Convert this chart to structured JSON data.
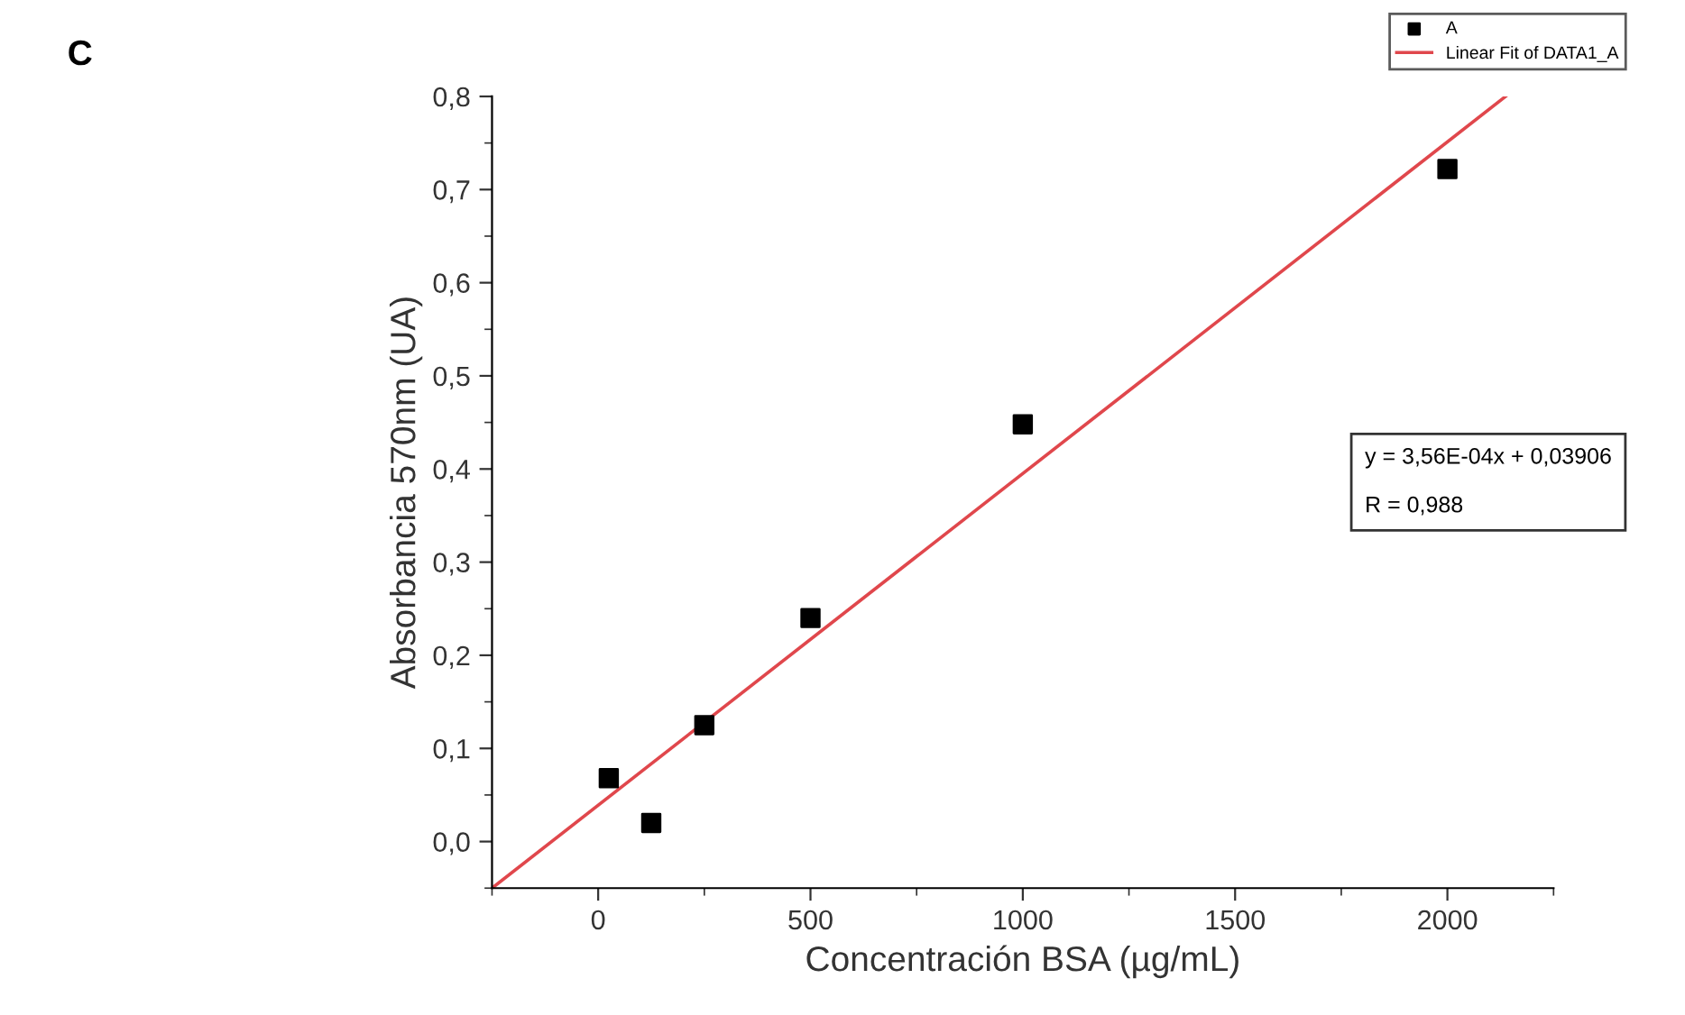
{
  "chart_data": {
    "type": "scatter",
    "xlabel": "Concentración BSA (µg/mL)",
    "ylabel": "Absorbancia 570nm (UA)",
    "annotations": [
      "C",
      "y = 3,56E-04x + 0,03906\n\nR = 0,988"
    ],
    "series": [
      {
        "name": "A",
        "color": "#000000",
        "marker": "square",
        "x": [
          25,
          125,
          250,
          500,
          1000,
          2000
        ],
        "values": [
          0.068,
          0.02,
          0.125,
          0.24,
          0.448,
          0.722
        ]
      },
      {
        "name": "Linear Fit of DATA1_A",
        "type": "line",
        "color": "#e0474c",
        "marker": "none",
        "x": [
          -250,
          2137
        ],
        "values": [
          -0.05,
          0.8
        ]
      }
    ],
    "xlim": [
      -250,
      2250
    ],
    "ylim": [
      -0.05,
      0.8
    ],
    "xticks": [
      0,
      500,
      1000,
      1500,
      2000
    ],
    "yticks": [
      {
        "value": 0.0,
        "label": "0,0"
      },
      {
        "value": 0.1,
        "label": "0,1"
      },
      {
        "value": 0.2,
        "label": "0,2"
      },
      {
        "value": 0.3,
        "label": "0,3"
      },
      {
        "value": 0.4,
        "label": "0,4"
      },
      {
        "value": 0.5,
        "label": "0,5"
      },
      {
        "value": 0.6,
        "label": "0,6"
      },
      {
        "value": 0.7,
        "label": "0,7"
      },
      {
        "value": 0.8,
        "label": "0,8"
      }
    ],
    "grid": false,
    "legend": "top right"
  }
}
